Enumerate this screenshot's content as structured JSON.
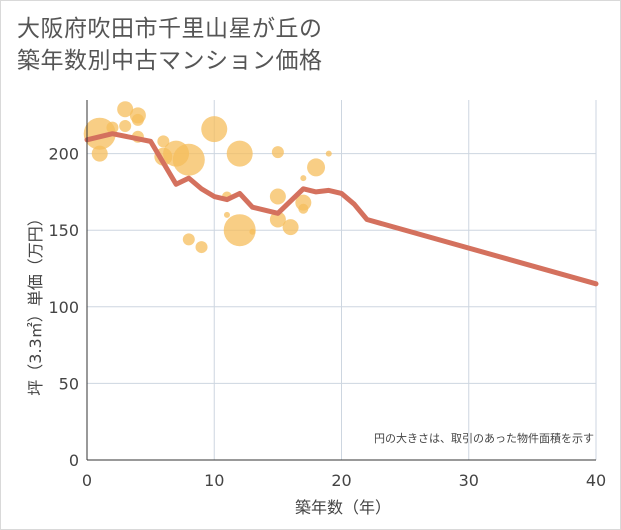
{
  "title": {
    "line1": "大阪府吹田市千里山星が丘の",
    "line2": "築年数別中古マンション価格"
  },
  "note": "円の大きさは、取引のあった物件面積を示す",
  "colors": {
    "line": "#d4715e",
    "bubble": "#f5be5c",
    "grid": "#cdd6e0",
    "axis": "#333333"
  },
  "chart_data": {
    "type": "scatter",
    "xlabel": "築年数（年）",
    "ylabel": "坪（3.3㎡）単価（万円）",
    "xlim": [
      0,
      40
    ],
    "ylim": [
      0,
      235
    ],
    "xticks": [
      0,
      10,
      20,
      30,
      40
    ],
    "yticks": [
      0,
      50,
      100,
      150,
      200
    ],
    "grid": true,
    "bubbles": [
      {
        "x": 1,
        "y": 213,
        "s": 16
      },
      {
        "x": 1,
        "y": 200,
        "s": 8
      },
      {
        "x": 2,
        "y": 217,
        "s": 6
      },
      {
        "x": 3,
        "y": 229,
        "s": 8
      },
      {
        "x": 3,
        "y": 218,
        "s": 6
      },
      {
        "x": 4,
        "y": 225,
        "s": 8
      },
      {
        "x": 4,
        "y": 222,
        "s": 6
      },
      {
        "x": 4,
        "y": 211,
        "s": 6
      },
      {
        "x": 6,
        "y": 208,
        "s": 6
      },
      {
        "x": 6,
        "y": 198,
        "s": 9
      },
      {
        "x": 7,
        "y": 200,
        "s": 13
      },
      {
        "x": 8,
        "y": 196,
        "s": 16
      },
      {
        "x": 8,
        "y": 144,
        "s": 6
      },
      {
        "x": 9,
        "y": 139,
        "s": 6
      },
      {
        "x": 10,
        "y": 216,
        "s": 13
      },
      {
        "x": 11,
        "y": 172,
        "s": 5
      },
      {
        "x": 11,
        "y": 160,
        "s": 3
      },
      {
        "x": 12,
        "y": 200,
        "s": 13
      },
      {
        "x": 12,
        "y": 150,
        "s": 16
      },
      {
        "x": 13,
        "y": 149,
        "s": 3
      },
      {
        "x": 15,
        "y": 201,
        "s": 6
      },
      {
        "x": 15,
        "y": 172,
        "s": 8
      },
      {
        "x": 15,
        "y": 157,
        "s": 8
      },
      {
        "x": 16,
        "y": 152,
        "s": 8
      },
      {
        "x": 17,
        "y": 168,
        "s": 8
      },
      {
        "x": 17,
        "y": 164,
        "s": 5
      },
      {
        "x": 17,
        "y": 184,
        "s": 3
      },
      {
        "x": 18,
        "y": 191,
        "s": 9
      },
      {
        "x": 19,
        "y": 200,
        "s": 3
      }
    ],
    "series": [
      {
        "x": [
          0,
          2,
          5,
          7,
          8,
          9,
          10,
          11,
          12,
          13,
          15,
          17,
          18,
          19,
          20,
          21,
          22,
          40
        ],
        "values": [
          209,
          213,
          208,
          180,
          184,
          177,
          172,
          170,
          174,
          165,
          161,
          177,
          175,
          176,
          174,
          167,
          157,
          115
        ]
      }
    ]
  }
}
